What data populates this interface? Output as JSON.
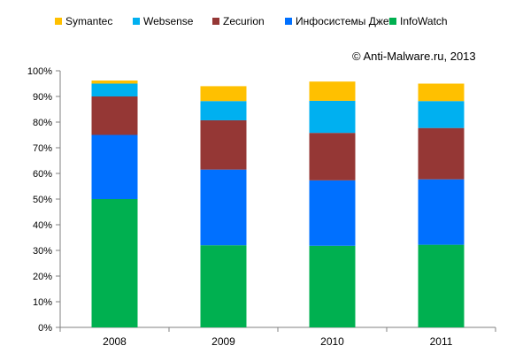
{
  "chart_data": {
    "type": "bar",
    "stacked": true,
    "annotation": "© Anti-Malware.ru,  2013",
    "categories": [
      "2008",
      "2009",
      "2010",
      "2011"
    ],
    "series": [
      {
        "name": "InfoWatch",
        "color": "#00b050",
        "values": [
          50.0,
          32.0,
          31.8,
          32.2
        ]
      },
      {
        "name": "Инфосистемы Джет",
        "color": "#0070ff",
        "values": [
          25.0,
          29.5,
          25.5,
          25.5
        ]
      },
      {
        "name": "Zecurion",
        "color": "#953735",
        "values": [
          15.0,
          19.2,
          18.5,
          20.0
        ]
      },
      {
        "name": "Websense",
        "color": "#00b0f0",
        "values": [
          5.0,
          7.5,
          12.5,
          10.5
        ]
      },
      {
        "name": "Symantec",
        "color": "#ffc000",
        "values": [
          1.2,
          5.8,
          7.5,
          6.8
        ]
      }
    ],
    "legend_order": [
      "Symantec",
      "Websense",
      "Zecurion",
      "Инфосистемы Джет",
      "InfoWatch"
    ],
    "legend_position": "top",
    "yticks": [
      "0%",
      "10%",
      "20%",
      "30%",
      "40%",
      "50%",
      "60%",
      "70%",
      "80%",
      "90%",
      "100%"
    ],
    "ylim": [
      0,
      100
    ],
    "grid": false
  }
}
